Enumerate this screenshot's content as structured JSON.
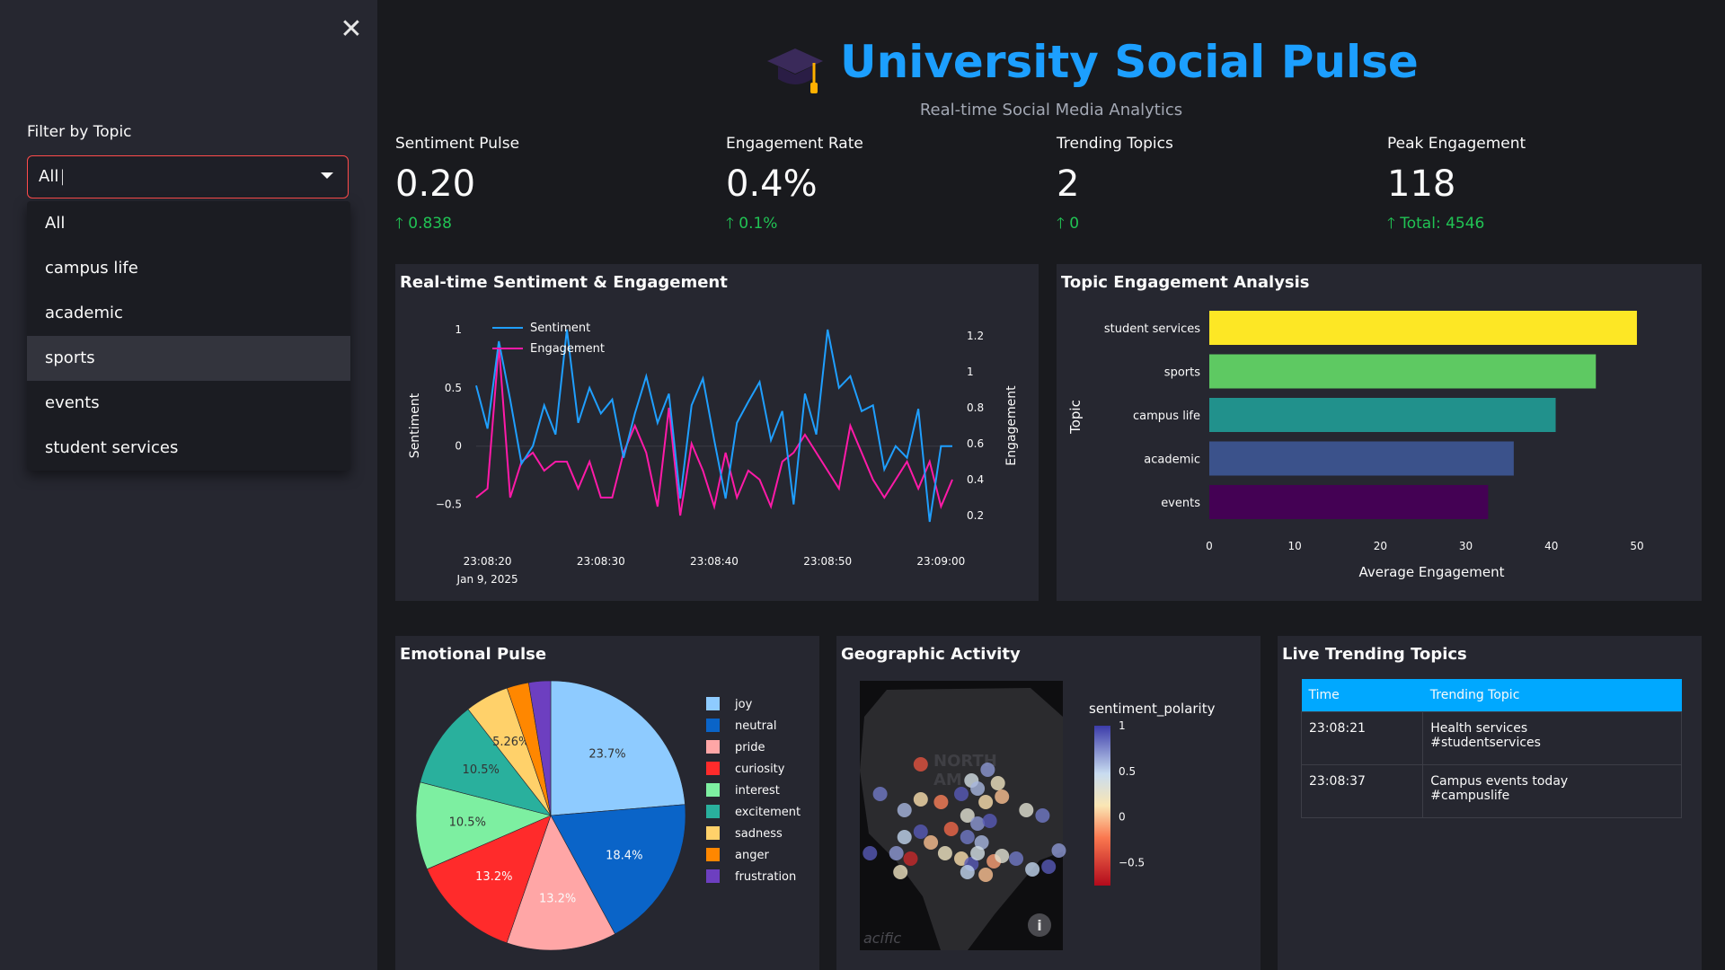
{
  "sidebar": {
    "close_icon": "close-icon",
    "filter_label": "Filter by Topic",
    "filter_value": "All",
    "options": [
      "All",
      "campus life",
      "academic",
      "sports",
      "events",
      "student services"
    ],
    "hovered_option": "sports"
  },
  "header": {
    "icon": "graduation-cap-icon",
    "title": "University Social Pulse",
    "subtitle": "Real-time Social Media Analytics"
  },
  "metrics": [
    {
      "label": "Sentiment Pulse",
      "value": "0.20",
      "delta": "0.838"
    },
    {
      "label": "Engagement Rate",
      "value": "0.4%",
      "delta": "0.1%"
    },
    {
      "label": "Trending Topics",
      "value": "2",
      "delta": "0"
    },
    {
      "label": "Peak Engagement",
      "value": "118",
      "delta": "Total: 4546"
    }
  ],
  "charts": {
    "line": {
      "title": "Real-time Sentiment & Engagement",
      "colors": {
        "sentiment": "#1f9fff",
        "engagement": "#ff1aa8"
      }
    },
    "topics": {
      "title": "Topic Engagement Analysis"
    },
    "emotion": {
      "title": "Emotional Pulse"
    },
    "geo": {
      "title": "Geographic Activity",
      "colorbar_title": "sentiment_polarity",
      "colorbar_ticks": [
        "1",
        "0.5",
        "0",
        "−0.5"
      ],
      "map_label_1": "NORTH",
      "map_label_2": "AM",
      "map_label_3": "acific",
      "info_icon": "info-icon"
    },
    "trending": {
      "title": "Live Trending Topics"
    }
  },
  "table": {
    "headers": [
      "Time",
      "Trending Topic"
    ],
    "rows": [
      {
        "time": "23:08:21",
        "topic_line1": "Health services",
        "topic_line2": "#studentservices"
      },
      {
        "time": "23:08:37",
        "topic_line1": "Campus events today",
        "topic_line2": "#campuslife"
      }
    ]
  },
  "chart_data": [
    {
      "type": "line",
      "title": "Real-time Sentiment & Engagement",
      "xlabel": "",
      "ylabel": "Sentiment",
      "y2label": "Engagement",
      "x_ticks": [
        "23:08:20",
        "23:08:30",
        "23:08:40",
        "23:08:50",
        "23:09:00"
      ],
      "x_tick_sub": "Jan 9, 2025",
      "y_ticks": [
        "1",
        "0.5",
        "0",
        "−0.5"
      ],
      "y2_ticks": [
        "1.2",
        "1",
        "0.8",
        "0.6",
        "0.4",
        "0.2"
      ],
      "ylim": [
        -0.75,
        1.1
      ],
      "y2lim": [
        0.1,
        1.3
      ],
      "x_seconds": [
        19,
        20,
        21,
        22,
        23,
        24,
        25,
        26,
        27,
        28,
        29,
        30,
        31,
        32,
        33,
        34,
        35,
        36,
        37,
        38,
        39,
        40,
        41,
        42,
        43,
        44,
        45,
        46,
        47,
        48,
        49,
        50,
        51,
        52,
        53,
        54,
        55,
        56,
        57,
        58,
        59,
        60,
        61
      ],
      "series": [
        {
          "name": "Sentiment",
          "axis": "y",
          "values": [
            0.52,
            0.15,
            0.9,
            0.4,
            -0.15,
            0.0,
            0.35,
            0.1,
            1.0,
            0.2,
            0.5,
            0.28,
            0.4,
            -0.1,
            0.28,
            0.6,
            0.2,
            0.45,
            -0.45,
            0.35,
            0.58,
            0.05,
            -0.45,
            0.2,
            0.38,
            0.55,
            0.05,
            0.3,
            -0.5,
            0.45,
            0.1,
            1.0,
            0.5,
            0.6,
            0.3,
            0.35,
            -0.2,
            0.0,
            -0.1,
            0.32,
            -0.65,
            0.0,
            0.0
          ]
        },
        {
          "name": "Engagement",
          "axis": "y2",
          "values": [
            0.3,
            0.35,
            1.15,
            0.3,
            0.5,
            0.55,
            0.45,
            0.5,
            0.5,
            0.35,
            0.5,
            0.3,
            0.3,
            0.55,
            0.7,
            0.55,
            0.25,
            0.8,
            0.2,
            0.6,
            0.45,
            0.25,
            0.55,
            0.3,
            0.45,
            0.4,
            0.25,
            0.5,
            0.55,
            0.65,
            0.55,
            0.45,
            0.35,
            0.7,
            0.55,
            0.4,
            0.3,
            0.4,
            0.5,
            0.35,
            0.5,
            0.25,
            0.4
          ]
        }
      ],
      "legend": "top-left"
    },
    {
      "type": "bar",
      "orientation": "horizontal",
      "title": "Topic Engagement Analysis",
      "xlabel": "Average Engagement",
      "ylabel": "Topic",
      "categories": [
        "student services",
        "sports",
        "campus life",
        "academic",
        "events"
      ],
      "values": [
        50,
        45.2,
        40.5,
        35.6,
        32.6
      ],
      "colors": [
        "#fde725",
        "#5ec962",
        "#21918c",
        "#3b528b",
        "#440154"
      ],
      "x_ticks": [
        "0",
        "10",
        "20",
        "30",
        "40",
        "50"
      ],
      "xlim": [
        0,
        52
      ]
    },
    {
      "type": "pie",
      "title": "Emotional Pulse",
      "labels": [
        "joy",
        "neutral",
        "pride",
        "curiosity",
        "interest",
        "excitement",
        "sadness",
        "anger",
        "frustration"
      ],
      "values": [
        23.7,
        18.4,
        13.2,
        13.2,
        10.5,
        10.5,
        5.26,
        2.63,
        2.63
      ],
      "slice_labels": [
        "23.7%",
        "18.4%",
        "13.2%",
        "13.2%",
        "10.5%",
        "10.5%",
        "5.26%",
        "",
        ""
      ],
      "colors": [
        "#8ecbff",
        "#0a64c8",
        "#ffa6a6",
        "#ff2b2b",
        "#7defa1",
        "#29b09d",
        "#ffd16a",
        "#ff8700",
        "#6d3fc0"
      ],
      "legend": "right"
    },
    {
      "type": "scatter",
      "title": "Geographic Activity",
      "color_by": "sentiment_polarity",
      "color_range": [
        -0.75,
        1.0
      ],
      "points": [
        {
          "x": 0.3,
          "y": 0.31,
          "v": -0.4
        },
        {
          "x": 0.63,
          "y": 0.33,
          "v": 0.7
        },
        {
          "x": 0.68,
          "y": 0.38,
          "v": 0.2
        },
        {
          "x": 0.55,
          "y": 0.37,
          "v": 0.4
        },
        {
          "x": 0.5,
          "y": 0.42,
          "v": 0.9
        },
        {
          "x": 0.58,
          "y": 0.4,
          "v": 0.6
        },
        {
          "x": 0.62,
          "y": 0.45,
          "v": 0.1
        },
        {
          "x": 0.7,
          "y": 0.43,
          "v": 0.0
        },
        {
          "x": 0.1,
          "y": 0.42,
          "v": 0.8
        },
        {
          "x": 0.3,
          "y": 0.44,
          "v": 0.1
        },
        {
          "x": 0.4,
          "y": 0.45,
          "v": -0.2
        },
        {
          "x": 0.22,
          "y": 0.48,
          "v": 0.6
        },
        {
          "x": 0.53,
          "y": 0.5,
          "v": 0.3
        },
        {
          "x": 0.58,
          "y": 0.53,
          "v": 0.7
        },
        {
          "x": 0.64,
          "y": 0.52,
          "v": 0.9
        },
        {
          "x": 0.45,
          "y": 0.55,
          "v": -0.3
        },
        {
          "x": 0.82,
          "y": 0.48,
          "v": 0.3
        },
        {
          "x": 0.9,
          "y": 0.5,
          "v": 0.8
        },
        {
          "x": 0.22,
          "y": 0.58,
          "v": 0.5
        },
        {
          "x": 0.35,
          "y": 0.6,
          "v": 0.0
        },
        {
          "x": 0.53,
          "y": 0.58,
          "v": 0.8
        },
        {
          "x": 0.6,
          "y": 0.6,
          "v": 0.6
        },
        {
          "x": 0.18,
          "y": 0.64,
          "v": 0.7
        },
        {
          "x": 0.25,
          "y": 0.66,
          "v": -0.6
        },
        {
          "x": 0.42,
          "y": 0.64,
          "v": 0.2
        },
        {
          "x": 0.5,
          "y": 0.66,
          "v": 0.1
        },
        {
          "x": 0.55,
          "y": 0.68,
          "v": 0.9
        },
        {
          "x": 0.58,
          "y": 0.64,
          "v": 0.4
        },
        {
          "x": 0.66,
          "y": 0.67,
          "v": -0.1
        },
        {
          "x": 0.7,
          "y": 0.65,
          "v": 0.3
        },
        {
          "x": 0.77,
          "y": 0.66,
          "v": 0.8
        },
        {
          "x": 0.85,
          "y": 0.7,
          "v": 0.5
        },
        {
          "x": 0.93,
          "y": 0.69,
          "v": 0.9
        },
        {
          "x": 0.98,
          "y": 0.63,
          "v": 0.7
        },
        {
          "x": 0.05,
          "y": 0.64,
          "v": 0.9
        },
        {
          "x": 0.2,
          "y": 0.71,
          "v": 0.2
        },
        {
          "x": 0.53,
          "y": 0.71,
          "v": 0.5
        },
        {
          "x": 0.62,
          "y": 0.72,
          "v": 0.0
        },
        {
          "x": 0.3,
          "y": 0.56,
          "v": 0.9
        }
      ]
    }
  ]
}
